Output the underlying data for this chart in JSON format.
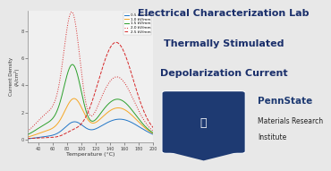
{
  "title_line1": "Electrical Characterization Lab",
  "title_line2": "Thermally Stimulated",
  "title_line3": "Depolarization Current",
  "title_color": "#1a2f6b",
  "background_color": "#e8e8e8",
  "plot_bg": "#f0f0f0",
  "xlabel": "Temperature (°C)",
  "ylabel": "Current Density\n(A/cm²)",
  "xlim": [
    25,
    200
  ],
  "ylim": [
    -0.2,
    9.5
  ],
  "pennstate_blue": "#1e3a72",
  "pennstate_text": "PennState",
  "pennstate_sub1": "Materials Research",
  "pennstate_sub2": "Institute",
  "legend_labels": [
    "0.5 kV/mm",
    "1.0 kV/mm",
    "1.5 kV/mm",
    "2.0 kV/mm",
    "2.5 kV/mm"
  ],
  "curve_colors": [
    "#2176c7",
    "#f5a623",
    "#2ca02c",
    "#d62728",
    "#d62728"
  ],
  "curve_ls": [
    "-",
    "-",
    "-",
    ":",
    "--"
  ],
  "curve_p1_mu": [
    90,
    90,
    88,
    87,
    86
  ],
  "curve_p1_sig": [
    13,
    13,
    12,
    11,
    10
  ],
  "curve_p1_amp": [
    1.1,
    2.6,
    4.8,
    8.2,
    0.3
  ],
  "curve_p2_mu": [
    153,
    151,
    150,
    149,
    148
  ],
  "curve_p2_sig": [
    28,
    26,
    25,
    24,
    24
  ],
  "curve_p2_amp": [
    1.5,
    2.3,
    2.9,
    4.5,
    7.0
  ],
  "curve_base": [
    0.015,
    0.03,
    0.05,
    0.07,
    0.09
  ],
  "curve_pre_amp": [
    0.25,
    0.65,
    1.2,
    2.0,
    0.07
  ],
  "curve_pre_mu": [
    60,
    60,
    60,
    60,
    60
  ],
  "curve_pre_sig": [
    22,
    22,
    22,
    22,
    22
  ],
  "title_fontsize": 8,
  "axis_fontsize": 4.5,
  "tick_fontsize": 3.5,
  "legend_fontsize": 3.0
}
